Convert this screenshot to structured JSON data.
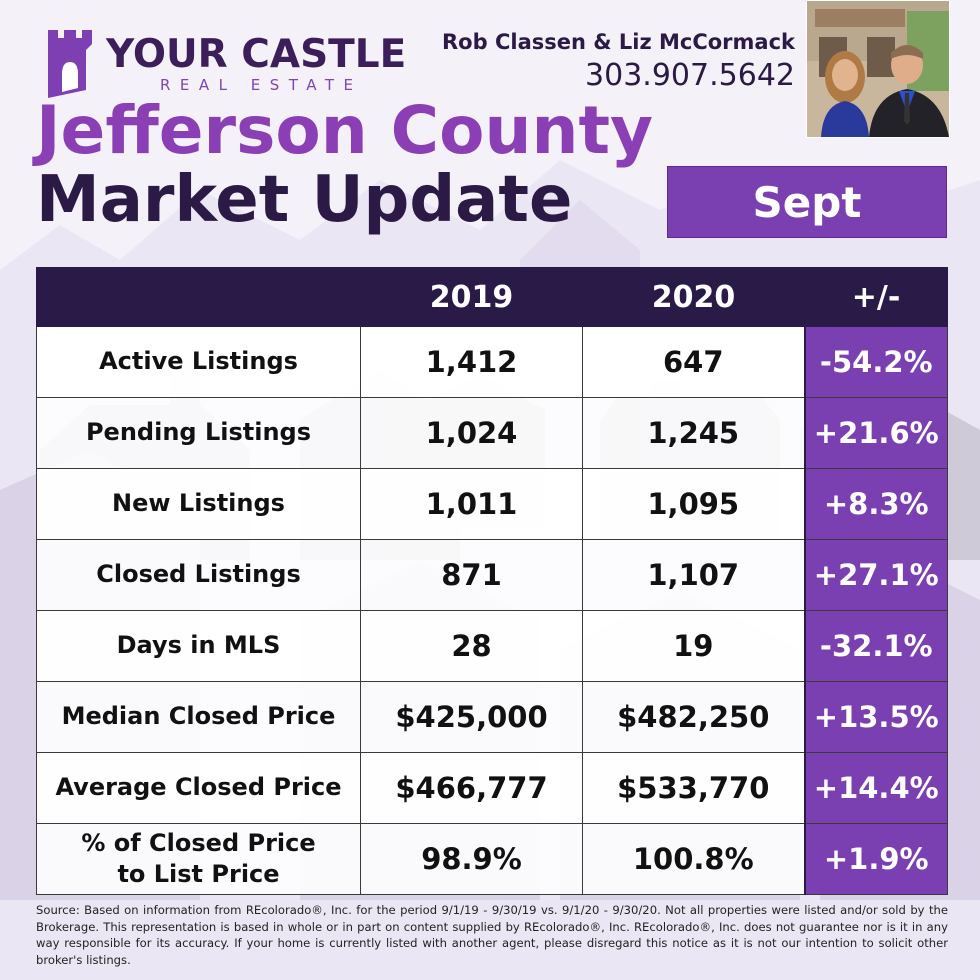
{
  "brand": {
    "name": "YOUR CASTLE",
    "subtitle": "REAL ESTATE"
  },
  "agents": "Rob Classen & Liz McCormack",
  "phone": "303.907.5642",
  "title": {
    "line1": "Jefferson County",
    "line2": "Market Update"
  },
  "month": "Sept",
  "table": {
    "headers": [
      "",
      "2019",
      "2020",
      "+/-"
    ],
    "rows": [
      {
        "metric": "Active Listings",
        "y2019": "1,412",
        "y2020": "647",
        "change": "-54.2%"
      },
      {
        "metric": "Pending Listings",
        "y2019": "1,024",
        "y2020": "1,245",
        "change": "+21.6%"
      },
      {
        "metric": "New Listings",
        "y2019": "1,011",
        "y2020": "1,095",
        "change": "+8.3%"
      },
      {
        "metric": "Closed Listings",
        "y2019": "871",
        "y2020": "1,107",
        "change": "+27.1%"
      },
      {
        "metric": "Days in MLS",
        "y2019": "28",
        "y2020": "19",
        "change": "-32.1%"
      },
      {
        "metric": "Median Closed Price",
        "y2019": "$425,000",
        "y2020": "$482,250",
        "change": "+13.5%"
      },
      {
        "metric": "Average Closed Price",
        "y2019": "$466,777",
        "y2020": "$533,770",
        "change": "+14.4%"
      },
      {
        "metric_line1": "% of Closed Price",
        "metric_line2": "to List Price",
        "y2019": "98.9%",
        "y2020": "100.8%",
        "change": "+1.9%"
      }
    ]
  },
  "source": "Source:  Based on information from REcolorado®, Inc. for the period 9/1/19 - 9/30/19 vs. 9/1/20 - 9/30/20. Not all properties were listed and/or sold by the Brokerage. This representation is based in whole or in part on content supplied by REcolorado®, Inc. REcolorado®, Inc. does not guarantee nor is it in any way responsible for its accuracy. If your home is currently listed with another agent, please disregard this notice as it is not our intention to solicit other broker's listings.",
  "colors": {
    "brand_purple": "#8a3fb5",
    "dark_purple": "#2a1a48",
    "change_purple": "#7a3fb0"
  },
  "icons": [
    "castle-icon",
    "agents-photo"
  ]
}
